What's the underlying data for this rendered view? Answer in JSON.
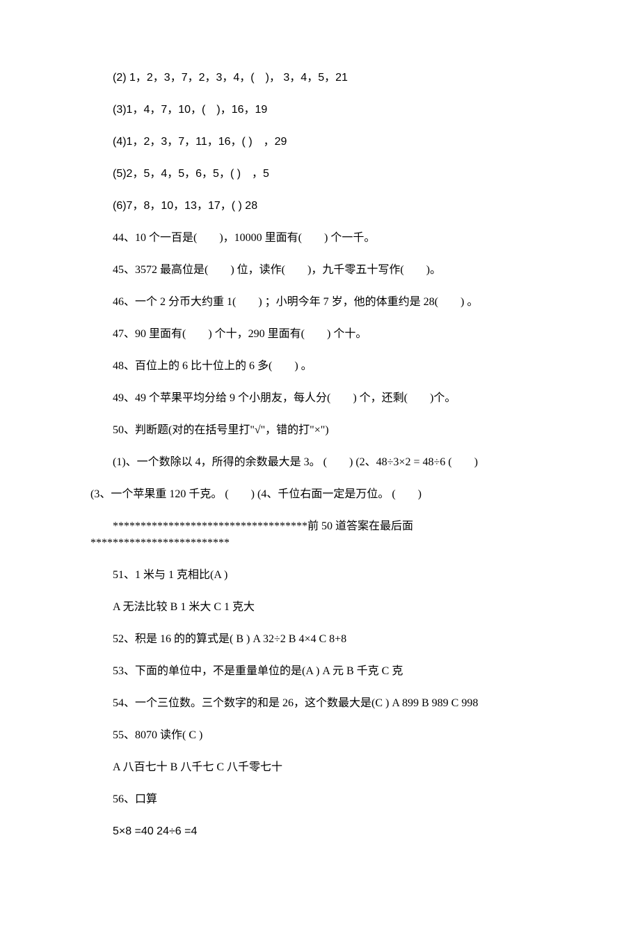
{
  "background_color": "#ffffff",
  "text_color": "#000000",
  "font_family_cjk": "SimSun",
  "font_family_latin": "Arial",
  "font_size_pt": 12,
  "line_spacing_em": 2.4,
  "lines": {
    "l1": "(2) 1，2，3，7，2，3，4，(　)，  3，4，5，21",
    "l2": "(3)1，4，7，10，(　)，16，19",
    "l3": "(4)1，2，3，7，11，16，( )　，29",
    "l4": "(5)2，5，4，5，6，5，( )　，5",
    "l5": "(6)7，8，10，13，17，( ) 28",
    "l6": "44、10 个一百是(　　)，10000 里面有(　　) 个一千。",
    "l7": "45、3572 最高位是(　　) 位，读作(　　)，九千零五十写作(　　)。",
    "l8": "46、一个 2 分币大约重 1(　　)  ；小明今年 7 岁，他的体重约是 28(　　)  。",
    "l9": "47、90 里面有(　　) 个十，290 里面有(　　) 个十。",
    "l10": "48、百位上的 6 比十位上的 6 多(　　)  。",
    "l11": "49、49 个苹果平均分给 9 个小朋友，每人分(　　) 个，还剩(　　)个。",
    "l12": "50、判断题(对的在括号里打\"√\"，错的打\"×\")",
    "l13": "(1)、一个数除以 4，所得的余数最大是 3。   (　　) (2、48÷3×2 = 48÷6 (　　)",
    "l14": "(3、一个苹果重 120 千克。  (　　) (4、千位右面一定是万位。  (　　)",
    "l15": "***********************************前 50 道答案在最后面*************************",
    "l16": "51、1 米与 1 克相比(A )",
    "l17": "A  无法比较  B 1 米大  C 1 克大",
    "l18": "52、积是 16 的的算式是( B ) A 32÷2 B 4×4 C 8+8",
    "l19": "53、下面的单位中，不是重量单位的是(A ) A  元  B  千克  C  克",
    "l20": "54、一个三位数。三个数字的和是 26，这个数最大是(C ) A 899 B 989 C 998",
    "l21": "55、8070 读作( C )",
    "l22": "A  八百七十  B  八千七  C  八千零七十",
    "l23": "56、口算",
    "l24": "5×8 =40 24÷6 =4"
  }
}
